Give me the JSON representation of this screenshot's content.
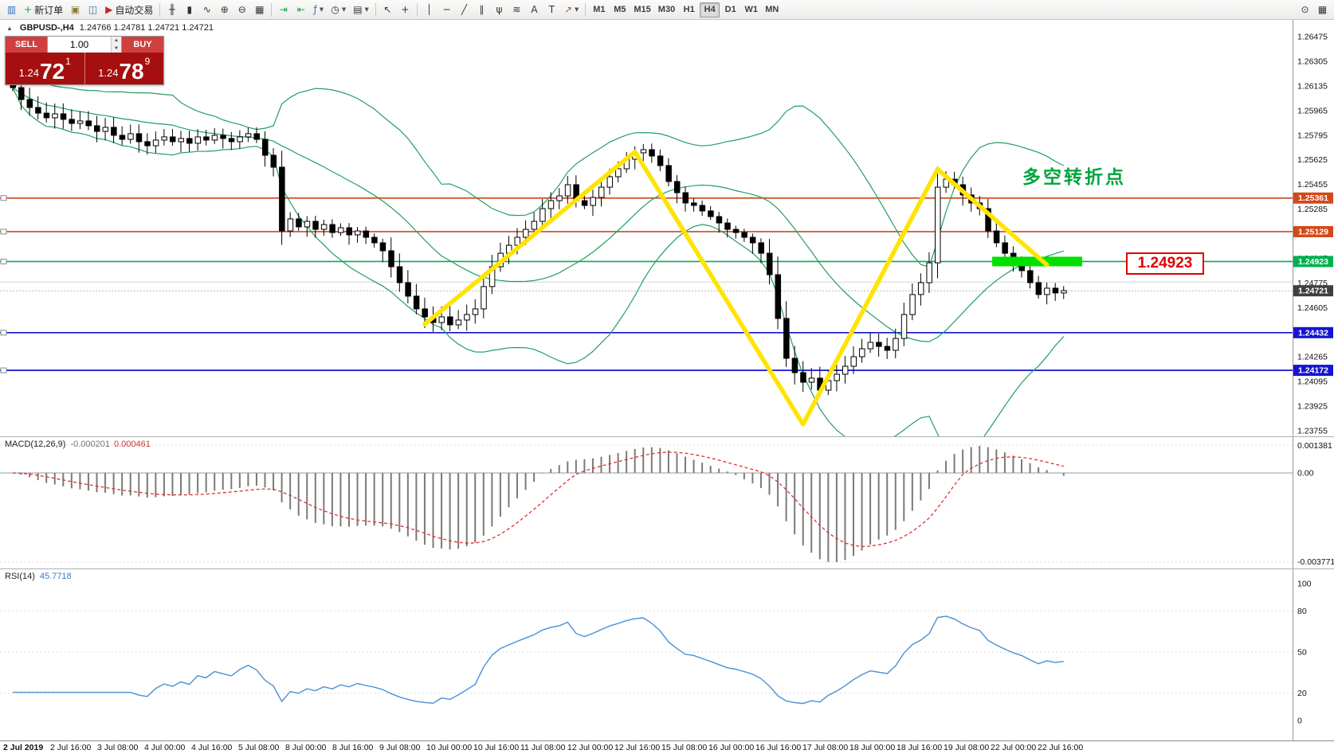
{
  "toolbar": {
    "left_buttons": [
      {
        "name": "chart-window-icon",
        "glyph": "▥",
        "color": "#2e6fc4"
      },
      {
        "name": "new-order-button",
        "glyph": "+",
        "color": "#1ea53c",
        "label": "新订单"
      },
      {
        "name": "chart-profiles-icon",
        "glyph": "▣",
        "color": "#8a7a3a"
      },
      {
        "name": "market-watch-icon",
        "glyph": "◫",
        "color": "#3a6fa8"
      },
      {
        "name": "auto-trading-button",
        "glyph": "▶",
        "color": "#c62525",
        "label": "自动交易"
      },
      {
        "sep": true
      },
      {
        "name": "bar-chart-button",
        "glyph": "╫",
        "color": "#333"
      },
      {
        "name": "candle-chart-button",
        "glyph": "▮",
        "color": "#333"
      },
      {
        "name": "line-chart-button",
        "glyph": "∿",
        "color": "#333"
      },
      {
        "name": "zoom-in-button",
        "glyph": "⊕",
        "color": "#333"
      },
      {
        "name": "zoom-out-button",
        "glyph": "⊖",
        "color": "#333"
      },
      {
        "name": "tile-windows-button",
        "glyph": "▦",
        "color": "#333"
      },
      {
        "sep": true
      },
      {
        "name": "auto-scroll-button",
        "glyph": "⇥",
        "color": "#1ea53c"
      },
      {
        "name": "chart-shift-button",
        "glyph": "⇤",
        "color": "#1ea53c"
      },
      {
        "name": "indicators-button",
        "glyph": "ƒ",
        "color": "#2e6fc4",
        "caret": true
      },
      {
        "name": "periods-button",
        "glyph": "◷",
        "color": "#333",
        "caret": true
      },
      {
        "name": "templates-button",
        "glyph": "▤",
        "color": "#333",
        "caret": true
      },
      {
        "sep": true
      },
      {
        "name": "cursor-button",
        "glyph": "↖",
        "color": "#333"
      },
      {
        "name": "crosshair-button",
        "glyph": "+",
        "color": "#333"
      },
      {
        "sep": true
      },
      {
        "name": "vline-button",
        "glyph": "│",
        "color": "#333"
      },
      {
        "name": "hline-button",
        "glyph": "─",
        "color": "#333"
      },
      {
        "name": "trendline-button",
        "glyph": "╱",
        "color": "#333"
      },
      {
        "name": "channel-button",
        "glyph": "∥",
        "color": "#333"
      },
      {
        "name": "pitchfork-button",
        "glyph": "ψ",
        "color": "#333"
      },
      {
        "name": "fibonacci-button",
        "glyph": "≋",
        "color": "#333"
      },
      {
        "name": "text-button",
        "glyph": "A",
        "color": "#333"
      },
      {
        "name": "label-button",
        "glyph": "T",
        "color": "#333"
      },
      {
        "name": "arrows-button",
        "glyph": "↗",
        "color": "#b05a2a",
        "caret": true
      },
      {
        "sep": true
      }
    ],
    "timeframes": [
      "M1",
      "M5",
      "M15",
      "M30",
      "H1",
      "H4",
      "D1",
      "W1",
      "MN"
    ],
    "active_timeframe": "H4",
    "right_buttons": [
      {
        "name": "search-button",
        "glyph": "⊙",
        "color": "#333"
      },
      {
        "name": "new-chart-button",
        "glyph": "▦",
        "color": "#333"
      }
    ]
  },
  "trade_panel": {
    "collapse_icon": "▲",
    "sell_label": "SELL",
    "buy_label": "BUY",
    "volume": "1.00",
    "spin_up": "▲",
    "spin_down": "▼",
    "sell_price": {
      "pre": "1.24",
      "big": "72",
      "sup": "1"
    },
    "buy_price": {
      "pre": "1.24",
      "big": "78",
      "sup": "9"
    }
  },
  "chart": {
    "symbol_text": "GBPUSD-,H4",
    "ohlc_text": "1.24766 1.24781 1.24721 1.24721",
    "annotation": "多空转折点",
    "price_callout": "1.24923",
    "bid": 1.24721,
    "ask": 1.24781,
    "bid_label": "1.24721",
    "levels": [
      {
        "price": 1.25361,
        "label": "1.25361",
        "color": "#d2491a"
      },
      {
        "price": 1.25129,
        "label": "1.25129",
        "color": "#d2491a"
      },
      {
        "price": 1.24923,
        "label": "1.24923",
        "color": "#00b050"
      },
      {
        "price": 1.24432,
        "label": "1.24432",
        "color": "#1414d2"
      },
      {
        "price": 1.24172,
        "label": "1.24172",
        "color": "#1414d2"
      }
    ],
    "y_axis": {
      "max": 1.26475,
      "min": 1.23755
    },
    "y_axis_labels": [
      "1.26475",
      "1.26305",
      "1.26135",
      "1.25965",
      "1.25795",
      "1.25625",
      "1.25455",
      "1.25285",
      "1.25115",
      "1.24945",
      "1.24775",
      "1.24605",
      "1.24435",
      "1.24265",
      "1.24095",
      "1.23925",
      "1.23755"
    ],
    "x_axis_labels": [
      "2 Jul 2019",
      "2 Jul 16:00",
      "3 Jul 08:00",
      "4 Jul 00:00",
      "4 Jul 16:00",
      "5 Jul 08:00",
      "8 Jul 00:00",
      "8 Jul 16:00",
      "9 Jul 08:00",
      "10 Jul 00:00",
      "10 Jul 16:00",
      "11 Jul 08:00",
      "12 Jul 00:00",
      "12 Jul 16:00",
      "15 Jul 08:00",
      "16 Jul 00:00",
      "16 Jul 16:00",
      "17 Jul 08:00",
      "18 Jul 00:00",
      "18 Jul 16:00",
      "19 Jul 08:00",
      "22 Jul 00:00",
      "22 Jul 16:00"
    ],
    "drawings": {
      "zigzag": [
        [
          49,
          1.2449
        ],
        [
          74,
          1.2568
        ],
        [
          94,
          1.238
        ],
        [
          110,
          1.2556
        ],
        [
          123,
          1.249
        ]
      ],
      "highlight": {
        "i1": 116.5,
        "i2": 127.2,
        "price": 1.24923
      },
      "zigzag_color": "#ffe400",
      "highlight_color": "#00e100"
    }
  },
  "chart_data": {
    "type": "candlestick",
    "symbol": "GBPUSD",
    "timeframe": "H4",
    "open_first": 1.2618,
    "bollinger": {
      "period": 20,
      "deviation": 2,
      "color": "#21a05f"
    },
    "closes": [
      1.26123,
      1.26041,
      1.25986,
      1.25947,
      1.25915,
      1.25942,
      1.25904,
      1.25876,
      1.25893,
      1.2586,
      1.25821,
      1.25849,
      1.25794,
      1.25766,
      1.25805,
      1.2575,
      1.25722,
      1.25761,
      1.25783,
      1.2575,
      1.25772,
      1.25739,
      1.25783,
      1.25761,
      1.25794,
      1.25772,
      1.2575,
      1.25783,
      1.25805,
      1.25766,
      1.25656,
      1.25574,
      1.25134,
      1.25217,
      1.25162,
      1.252,
      1.25145,
      1.25178,
      1.25123,
      1.25156,
      1.25107,
      1.25134,
      1.2509,
      1.25052,
      1.24997,
      1.24887,
      1.24777,
      1.24684,
      1.24596,
      1.24541,
      1.24502,
      1.24541,
      1.24486,
      1.24519,
      1.24557,
      1.24596,
      1.2475,
      1.24887,
      1.2498,
      1.25035,
      1.2509,
      1.25145,
      1.252,
      1.25288,
      1.25343,
      1.25376,
      1.25453,
      1.25343,
      1.2531,
      1.25365,
      1.25436,
      1.25508,
      1.25563,
      1.25629,
      1.25673,
      1.25695,
      1.25651,
      1.25585,
      1.25475,
      1.25398,
      1.25327,
      1.2531,
      1.25272,
      1.25233,
      1.25189,
      1.25145,
      1.25123,
      1.2509,
      1.25052,
      1.2498,
      1.24832,
      1.2453,
      1.24255,
      1.24156,
      1.2409,
      1.24118,
      1.24035,
      1.24101,
      1.24145,
      1.242,
      1.24266,
      1.24321,
      1.24365,
      1.24337,
      1.2431,
      1.24392,
      1.24557,
      1.24695,
      1.24777,
      1.24914,
      1.25436,
      1.25491,
      1.25453,
      1.25382,
      1.25327,
      1.25288,
      1.25134,
      1.25052,
      1.2498,
      1.24914,
      1.2486,
      1.24777,
      1.24695,
      1.24739,
      1.24706,
      1.24722
    ]
  },
  "macd": {
    "title": "MACD(12,26,9)",
    "value_main": "-0.000201",
    "value_signal": "0.000461",
    "axis_max": "0.001381",
    "axis_zero": "0.00",
    "axis_min": "-0.003771",
    "bar_color": "#7a7a7a",
    "signal_color": "#e03030"
  },
  "rsi": {
    "title": "RSI(14)",
    "value": "45.7718",
    "axis_labels": [
      "100",
      "80",
      "50",
      "20",
      "0"
    ],
    "level_values": [
      100,
      80,
      50,
      20,
      0
    ],
    "levels_dotted": [
      80,
      50,
      20
    ],
    "line_color": "#4a8fd4"
  }
}
